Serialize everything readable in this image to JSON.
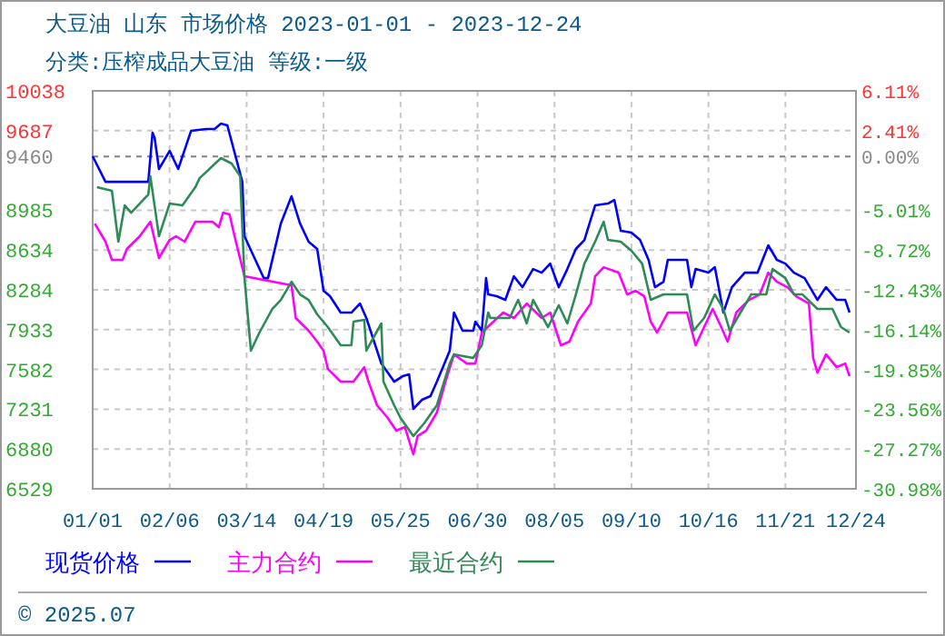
{
  "chart_data": {
    "type": "line",
    "title": "大豆油  山东  市场价格  2023-01-01 - 2023-12-24",
    "subtitle": "分类:压榨成品大豆油  等级:一级",
    "annotations": [
      "© 2025.07"
    ],
    "xlim": [
      "2023-01-01",
      "2023-12-24"
    ],
    "xticks": [
      {
        "value": "2023-01-01",
        "label": "01/01"
      },
      {
        "value": "2023-02-06",
        "label": "02/06"
      },
      {
        "value": "2023-03-14",
        "label": "03/14"
      },
      {
        "value": "2023-04-19",
        "label": "04/19"
      },
      {
        "value": "2023-05-25",
        "label": "05/25"
      },
      {
        "value": "2023-06-30",
        "label": "06/30"
      },
      {
        "value": "2023-08-05",
        "label": "08/05"
      },
      {
        "value": "2023-09-10",
        "label": "09/10"
      },
      {
        "value": "2023-10-16",
        "label": "10/16"
      },
      {
        "value": "2023-11-21",
        "label": "11/21"
      },
      {
        "value": "2023-12-24",
        "label": "12/24"
      }
    ],
    "ylim": [
      6529,
      10038
    ],
    "yticks": [
      6529,
      6880,
      7231,
      7582,
      7933,
      8284,
      8634,
      8985,
      9460,
      9687,
      10038
    ],
    "y2lim": [
      -30.98,
      6.11
    ],
    "y2ticks": [
      {
        "value": -30.98,
        "label": "-30.98%"
      },
      {
        "value": -27.27,
        "label": "-27.27%"
      },
      {
        "value": -23.56,
        "label": "-23.56%"
      },
      {
        "value": -19.85,
        "label": "-19.85%"
      },
      {
        "value": -16.14,
        "label": "-16.14%"
      },
      {
        "value": -12.43,
        "label": "-12.43%"
      },
      {
        "value": -8.72,
        "label": "-8.72%"
      },
      {
        "value": -5.01,
        "label": "-5.01%"
      },
      {
        "value": 0,
        "label": "0.00%"
      },
      {
        "value": 2.41,
        "label": "2.41%"
      },
      {
        "value": 6.11,
        "label": "6.11%"
      }
    ],
    "ref_lines": [
      {
        "axis": "y",
        "value": 9460,
        "color": "#888888"
      }
    ],
    "grid": true,
    "legend": "bottom",
    "series": [
      {
        "name": "现货价格",
        "color": "#0000ff",
        "x": [
          "2023-01-01",
          "2023-01-07",
          "2023-01-27",
          "2023-01-29",
          "2023-01-30",
          "2023-02-01",
          "2023-02-06",
          "2023-02-10",
          "2023-02-16",
          "2023-02-23",
          "2023-02-27",
          "2023-03-02",
          "2023-03-05",
          "2023-03-12",
          "2023-03-13",
          "2023-03-22",
          "2023-03-24",
          "2023-03-30",
          "2023-04-04",
          "2023-04-08",
          "2023-04-12",
          "2023-04-16",
          "2023-04-19",
          "2023-04-22",
          "2023-04-27",
          "2023-05-02",
          "2023-05-06",
          "2023-05-09",
          "2023-05-16",
          "2023-05-22",
          "2023-05-26",
          "2023-05-29",
          "2023-05-31",
          "2023-06-04",
          "2023-06-08",
          "2023-06-11",
          "2023-06-17",
          "2023-06-19",
          "2023-06-23",
          "2023-06-28",
          "2023-06-29",
          "2023-07-02",
          "2023-07-04",
          "2023-07-05",
          "2023-07-09",
          "2023-07-13",
          "2023-07-17",
          "2023-07-21",
          "2023-07-26",
          "2023-07-30",
          "2023-08-03",
          "2023-08-07",
          "2023-08-11",
          "2023-08-15",
          "2023-08-19",
          "2023-08-24",
          "2023-08-30",
          "2023-09-02",
          "2023-09-05",
          "2023-09-10",
          "2023-09-14",
          "2023-09-18",
          "2023-09-21",
          "2023-09-25",
          "2023-09-27",
          "2023-10-06",
          "2023-10-08",
          "2023-10-10",
          "2023-10-16",
          "2023-10-19",
          "2023-10-23",
          "2023-10-27",
          "2023-11-02",
          "2023-11-08",
          "2023-11-13",
          "2023-11-17",
          "2023-11-21",
          "2023-11-25",
          "2023-11-30",
          "2023-12-06",
          "2023-12-10",
          "2023-12-15",
          "2023-12-19",
          "2023-12-21"
        ],
        "values": [
          9461,
          9236,
          9236,
          9669,
          9621,
          9349,
          9509,
          9349,
          9685,
          9701,
          9701,
          9749,
          9733,
          9236,
          8756,
          8387,
          8387,
          8868,
          9108,
          8868,
          8708,
          8644,
          8275,
          8227,
          8083,
          8083,
          8163,
          8035,
          7634,
          7474,
          7522,
          7538,
          7234,
          7314,
          7346,
          7474,
          7747,
          8083,
          7923,
          7923,
          8003,
          7923,
          8387,
          8243,
          8227,
          8195,
          8403,
          8307,
          8467,
          8435,
          8515,
          8307,
          8467,
          8644,
          8724,
          9028,
          9044,
          9076,
          8804,
          8788,
          8724,
          8548,
          8307,
          8355,
          8548,
          8548,
          8307,
          8467,
          8435,
          8483,
          8083,
          8307,
          8435,
          8435,
          8676,
          8548,
          8515,
          8435,
          8387,
          8195,
          8307,
          8195,
          8195,
          8083
        ]
      },
      {
        "name": "主力合约",
        "color": "#ff00ff",
        "x": [
          "2023-01-02",
          "2023-01-07",
          "2023-01-10",
          "2023-01-15",
          "2023-01-17",
          "2023-01-23",
          "2023-01-28",
          "2023-02-01",
          "2023-02-06",
          "2023-02-09",
          "2023-02-13",
          "2023-02-18",
          "2023-02-26",
          "2023-03-01",
          "2023-03-03",
          "2023-03-06",
          "2023-03-09",
          "2023-03-13",
          "2023-04-04",
          "2023-04-06",
          "2023-04-12",
          "2023-04-16",
          "2023-04-19",
          "2023-04-21",
          "2023-04-27",
          "2023-05-03",
          "2023-05-08",
          "2023-05-10",
          "2023-05-14",
          "2023-05-19",
          "2023-05-23",
          "2023-05-27",
          "2023-05-31",
          "2023-06-02",
          "2023-06-06",
          "2023-06-11",
          "2023-06-15",
          "2023-06-19",
          "2023-06-25",
          "2023-06-29",
          "2023-07-02",
          "2023-07-12",
          "2023-07-17",
          "2023-07-23",
          "2023-07-30",
          "2023-08-03",
          "2023-08-08",
          "2023-08-12",
          "2023-08-16",
          "2023-08-22",
          "2023-08-24",
          "2023-08-28",
          "2023-09-04",
          "2023-09-08",
          "2023-09-12",
          "2023-09-16",
          "2023-09-19",
          "2023-09-22",
          "2023-09-27",
          "2023-10-06",
          "2023-10-10",
          "2023-10-14",
          "2023-10-18",
          "2023-10-22",
          "2023-10-25",
          "2023-10-29",
          "2023-11-04",
          "2023-11-09",
          "2023-11-13",
          "2023-11-17",
          "2023-11-22",
          "2023-11-26",
          "2023-12-02",
          "2023-12-04",
          "2023-12-06",
          "2023-12-10",
          "2023-12-15",
          "2023-12-19",
          "2023-12-21"
        ],
        "values": [
          8868,
          8708,
          8548,
          8548,
          8644,
          8756,
          8884,
          8564,
          8724,
          8756,
          8708,
          8884,
          8884,
          8836,
          8964,
          8948,
          8708,
          8403,
          8323,
          8035,
          7923,
          7827,
          7747,
          7586,
          7474,
          7474,
          7602,
          7474,
          7266,
          7154,
          7042,
          7074,
          6833,
          6994,
          7042,
          7202,
          7474,
          7714,
          7634,
          7634,
          7907,
          8083,
          8035,
          8163,
          8035,
          8083,
          7795,
          7827,
          8003,
          8163,
          8403,
          8483,
          8435,
          8243,
          8275,
          8227,
          8003,
          7907,
          8083,
          8083,
          7795,
          7955,
          8115,
          7955,
          7827,
          8083,
          8195,
          8243,
          8435,
          8355,
          8307,
          8227,
          8163,
          7682,
          7554,
          7714,
          7602,
          7634,
          7522
        ]
      },
      {
        "name": "最近合约",
        "color": "#2e8b57",
        "x": [
          "2023-01-03",
          "2023-01-10",
          "2023-01-13",
          "2023-01-16",
          "2023-01-19",
          "2023-01-27",
          "2023-01-28",
          "2023-02-01",
          "2023-02-06",
          "2023-02-12",
          "2023-02-18",
          "2023-02-20",
          "2023-03-02",
          "2023-03-07",
          "2023-03-11",
          "2023-03-13",
          "2023-03-16",
          "2023-03-20",
          "2023-03-26",
          "2023-03-30",
          "2023-04-04",
          "2023-04-08",
          "2023-04-12",
          "2023-04-16",
          "2023-04-21",
          "2023-04-27",
          "2023-05-02",
          "2023-05-03",
          "2023-05-08",
          "2023-05-09",
          "2023-05-16",
          "2023-05-17",
          "2023-05-22",
          "2023-05-25",
          "2023-05-31",
          "2023-06-05",
          "2023-06-11",
          "2023-06-17",
          "2023-06-19",
          "2023-06-28",
          "2023-07-02",
          "2023-07-05",
          "2023-07-06",
          "2023-07-15",
          "2023-07-19",
          "2023-07-23",
          "2023-07-26",
          "2023-08-02",
          "2023-08-07",
          "2023-08-11",
          "2023-08-15",
          "2023-08-19",
          "2023-08-24",
          "2023-08-28",
          "2023-08-30",
          "2023-09-05",
          "2023-09-10",
          "2023-09-15",
          "2023-09-19",
          "2023-09-25",
          "2023-10-06",
          "2023-10-09",
          "2023-10-14",
          "2023-10-19",
          "2023-10-23",
          "2023-10-26",
          "2023-10-31",
          "2023-11-05",
          "2023-11-12",
          "2023-11-15",
          "2023-11-21",
          "2023-11-25",
          "2023-11-29",
          "2023-12-06",
          "2023-12-13",
          "2023-12-17",
          "2023-12-21"
        ],
        "values": [
          9188,
          9156,
          8708,
          9028,
          8964,
          9124,
          9284,
          8756,
          9044,
          9028,
          9188,
          9268,
          9445,
          9397,
          9284,
          8387,
          7747,
          7907,
          8115,
          8195,
          8355,
          8243,
          8195,
          8067,
          7955,
          7795,
          7795,
          8003,
          8019,
          7747,
          7987,
          7474,
          7266,
          7154,
          6994,
          7106,
          7266,
          7634,
          7714,
          7682,
          7795,
          8083,
          8035,
          8035,
          8195,
          7987,
          8195,
          7955,
          8147,
          7987,
          8243,
          8515,
          8708,
          8884,
          8724,
          8708,
          8628,
          8515,
          8195,
          8243,
          8243,
          7923,
          8035,
          8243,
          8115,
          7923,
          8083,
          8243,
          8243,
          8467,
          8387,
          8243,
          8243,
          8115,
          8115,
          7955,
          7907
        ]
      }
    ]
  }
}
